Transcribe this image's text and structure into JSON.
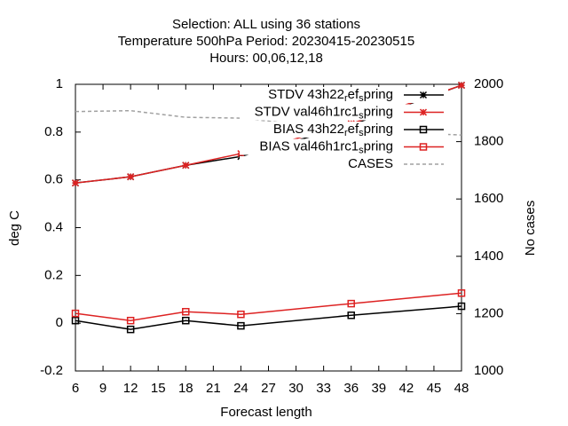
{
  "chart_data": {
    "type": "line",
    "title": [
      "Selection: ALL using    36 stations",
      "Temperature 500hPa   Period: 20230415-20230515",
      "Hours:  00,06,12,18"
    ],
    "xlabel": "Forecast length",
    "ylabel": "deg C",
    "y2label": "No cases",
    "x": [
      6,
      12,
      18,
      24,
      36,
      48
    ],
    "series": [
      {
        "name": "STDV 43h22_ref_spring",
        "color": "#000000",
        "marker": "star",
        "values": [
          0.587,
          0.613,
          0.661,
          0.698,
          0.83,
          0.996
        ]
      },
      {
        "name": "STDV val46h1rc1_spring",
        "color": "#dd2222",
        "marker": "star",
        "values": [
          0.587,
          0.613,
          0.661,
          0.71,
          0.835,
          0.996
        ]
      },
      {
        "name": "BIAS 43h22_ref_spring",
        "color": "#000000",
        "marker": "square",
        "values": [
          0.011,
          -0.026,
          0.011,
          -0.011,
          0.033,
          0.071
        ]
      },
      {
        "name": "BIAS val46h1rc1_spring",
        "color": "#dd2222",
        "marker": "square",
        "values": [
          0.041,
          0.011,
          0.048,
          0.037,
          0.082,
          0.126
        ]
      },
      {
        "name": "CASES",
        "color": "#a0a0a0",
        "marker": "none",
        "dashed": true,
        "axis": "y2",
        "values": [
          1905,
          1908,
          1885,
          1882,
          1840,
          1823
        ]
      }
    ],
    "xlim": [
      6,
      48
    ],
    "xticks": [
      6,
      9,
      12,
      15,
      18,
      21,
      24,
      27,
      30,
      33,
      36,
      39,
      42,
      45,
      48
    ],
    "ylim": [
      -0.2,
      1
    ],
    "yticks": [
      -0.2,
      0,
      0.2,
      0.4,
      0.6,
      0.8,
      1
    ],
    "y2lim": [
      1000,
      2000
    ],
    "y2ticks": [
      1000,
      1200,
      1400,
      1600,
      1800,
      2000
    ],
    "legend": "top-right"
  }
}
